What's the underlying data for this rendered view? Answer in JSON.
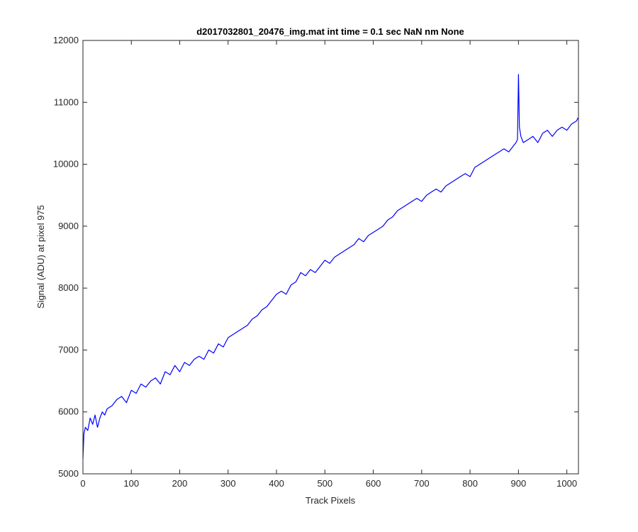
{
  "chart_data": {
    "type": "line",
    "title": "d2017032801_20476_img.mat int time = 0.1 sec  NaN nm None",
    "xlabel": "Track Pixels",
    "ylabel": "Signal (ADU) at pixel 975",
    "xlim": [
      0,
      1024
    ],
    "ylim": [
      5000,
      12000
    ],
    "xticks": [
      0,
      100,
      200,
      300,
      400,
      500,
      600,
      700,
      800,
      900,
      1000
    ],
    "yticks": [
      5000,
      6000,
      7000,
      8000,
      9000,
      10000,
      11000,
      12000
    ],
    "grid": false,
    "line_color": "#0000ff",
    "series": [
      {
        "x": [
          0,
          2,
          5,
          10,
          15,
          20,
          25,
          30,
          35,
          40,
          45,
          50,
          60,
          70,
          80,
          90,
          100,
          110,
          120,
          130,
          140,
          150,
          160,
          170,
          180,
          190,
          200,
          210,
          220,
          230,
          240,
          250,
          260,
          270,
          280,
          290,
          300,
          310,
          320,
          330,
          340,
          350,
          360,
          370,
          380,
          390,
          400,
          410,
          420,
          430,
          440,
          450,
          460,
          470,
          480,
          490,
          500,
          510,
          520,
          530,
          540,
          550,
          560,
          570,
          580,
          590,
          600,
          610,
          620,
          630,
          640,
          650,
          660,
          670,
          680,
          690,
          700,
          710,
          720,
          730,
          740,
          750,
          760,
          770,
          780,
          790,
          800,
          810,
          820,
          830,
          840,
          850,
          860,
          870,
          880,
          890,
          895,
          898,
          900,
          902,
          905,
          910,
          920,
          930,
          940,
          950,
          960,
          970,
          980,
          990,
          1000,
          1010,
          1020,
          1023
        ],
        "y": [
          5250,
          5650,
          5750,
          5700,
          5900,
          5800,
          5950,
          5750,
          5900,
          6000,
          5950,
          6050,
          6100,
          6200,
          6250,
          6150,
          6350,
          6300,
          6450,
          6400,
          6500,
          6550,
          6450,
          6650,
          6600,
          6750,
          6650,
          6800,
          6750,
          6850,
          6900,
          6850,
          7000,
          6950,
          7100,
          7050,
          7200,
          7250,
          7300,
          7350,
          7400,
          7500,
          7550,
          7650,
          7700,
          7800,
          7900,
          7950,
          7900,
          8050,
          8100,
          8250,
          8200,
          8300,
          8250,
          8350,
          8450,
          8400,
          8500,
          8550,
          8600,
          8650,
          8700,
          8800,
          8750,
          8850,
          8900,
          8950,
          9000,
          9100,
          9150,
          9250,
          9300,
          9350,
          9400,
          9450,
          9400,
          9500,
          9550,
          9600,
          9550,
          9650,
          9700,
          9750,
          9800,
          9850,
          9800,
          9950,
          10000,
          10050,
          10100,
          10150,
          10200,
          10250,
          10200,
          10300,
          10350,
          10400,
          11450,
          10600,
          10450,
          10350,
          10400,
          10450,
          10350,
          10500,
          10550,
          10450,
          10550,
          10600,
          10550,
          10650,
          10700,
          10750
        ]
      }
    ]
  }
}
